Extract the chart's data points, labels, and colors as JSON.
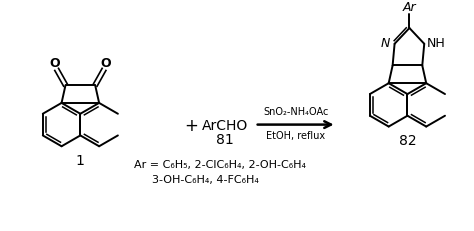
{
  "bg_color": "#ffffff",
  "line_color": "#000000",
  "compound1_label": "1",
  "compound81_label": "81",
  "compound82_label": "82",
  "reagent_label": "ArCHO",
  "arrow_top": "SnO₂-NH₄OAc",
  "arrow_bottom": "EtOH, reflux",
  "plus_sign": "+",
  "ar_label": "Ar",
  "n_label": "N",
  "nh_label": "NH",
  "ar_def_line1": "Ar = C₆H₅, 2-ClC₆H₄, 2-OH-C₆H₄",
  "ar_def_line2": "3-OH-C₆H₄, 4-FC₆H₄",
  "o_label": "O",
  "figsize": [
    4.74,
    2.32
  ],
  "dpi": 100
}
